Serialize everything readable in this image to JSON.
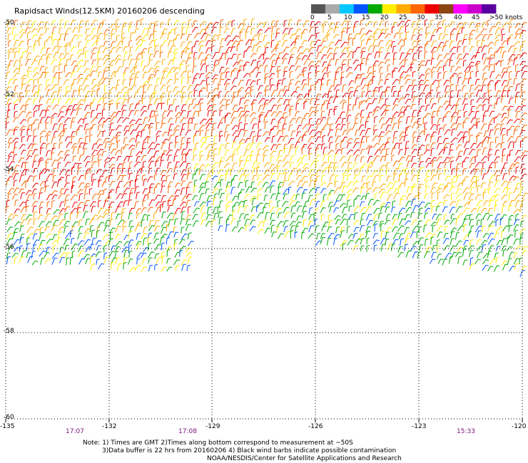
{
  "title": "Rapidsact Winds(12.5KM) 20160206 descending",
  "legend": {
    "labels": [
      "0",
      "5",
      "10",
      "15",
      "20",
      "25",
      "30",
      "35",
      "40",
      "45",
      ">50 knots"
    ],
    "colors": [
      "#555555",
      "#aaaaaa",
      "#00c8ff",
      "#0055ff",
      "#00aa00",
      "#ffee00",
      "#ffaa00",
      "#ff6600",
      "#ee0000",
      "#8b4513",
      "#ff00ff",
      "#cc00cc",
      "#5a00a0"
    ]
  },
  "lat_labels": [
    "-50",
    "-52",
    "-54",
    "-56",
    "-58",
    "-60"
  ],
  "lon_labels": [
    "-135",
    "-132",
    "-129",
    "-126",
    "-123",
    "-120"
  ],
  "time_labels": [
    "17:07",
    "17:08",
    "15:33"
  ],
  "notes": {
    "line1": "Note: 1) Times are GMT 2)Times along bottom correspond to measurement at ~50S",
    "line2": "3)Data buffer is 22 hrs from 20160206 4) Black wind barbs indicate possible contamination",
    "line3": "NOAA/NESDIS/Center for Satellite Applications and Research"
  }
}
